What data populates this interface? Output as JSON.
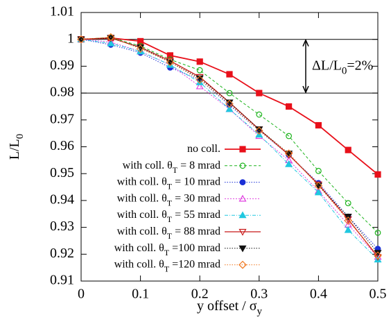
{
  "chart_data": {
    "type": "line",
    "xlabel": [
      "y offset / σ",
      "y"
    ],
    "ylabel": [
      "L/L",
      "0"
    ],
    "x": [
      0,
      0.05,
      0.1,
      0.15,
      0.2,
      0.25,
      0.3,
      0.35,
      0.4,
      0.45,
      0.5
    ],
    "xlim": [
      0,
      0.5
    ],
    "xticks": [
      0,
      0.1,
      0.2,
      0.3,
      0.4,
      0.5
    ],
    "ylim": [
      0.91,
      1.01
    ],
    "yticks": [
      0.91,
      0.92,
      0.93,
      0.94,
      0.95,
      0.96,
      0.97,
      0.98,
      0.99,
      1,
      1.01
    ],
    "hlines": [
      1,
      0.98
    ],
    "annotation": [
      "ΔL/L",
      "0",
      "=2%"
    ],
    "series": [
      {
        "name": [
          "no coll."
        ],
        "color": "#e8101a",
        "marker": "square",
        "dash": "",
        "width": 1.8,
        "values": [
          1,
          1.0005,
          0.9993,
          0.994,
          0.9917,
          0.987,
          0.98,
          0.975,
          0.968,
          0.9588,
          0.9497
        ]
      },
      {
        "name": [
          "with coll. θ",
          "T",
          " =  8 mrad"
        ],
        "color": "#1bb31b",
        "marker": "circle-open",
        "dash": "4 3",
        "width": 1,
        "values": [
          1,
          1.0007,
          0.9975,
          0.9925,
          0.9885,
          0.98,
          0.972,
          0.964,
          0.951,
          0.939,
          0.928
        ]
      },
      {
        "name": [
          "with coll. θ",
          "T",
          " = 10 mrad"
        ],
        "color": "#1a2fd6",
        "marker": "circle",
        "dash": "1.5 2",
        "width": 1,
        "values": [
          1,
          0.998,
          0.995,
          0.9895,
          0.985,
          0.9755,
          0.966,
          0.957,
          0.9465,
          0.934,
          0.922
        ]
      },
      {
        "name": [
          "with coll. θ",
          "T",
          " = 30 mrad"
        ],
        "color": "#e040e0",
        "marker": "triangle-open",
        "dash": "2 2",
        "width": 1,
        "values": [
          1,
          0.999,
          0.9955,
          0.9905,
          0.9825,
          0.974,
          0.964,
          0.955,
          0.9435,
          0.931,
          0.919
        ]
      },
      {
        "name": [
          "with coll. θ",
          "T",
          " = 55 mrad"
        ],
        "color": "#20c8e0",
        "marker": "triangle",
        "dash": "5 2 1 2",
        "width": 1,
        "values": [
          1,
          0.9985,
          0.9955,
          0.9905,
          0.984,
          0.974,
          0.9645,
          0.9535,
          0.943,
          0.929,
          0.918
        ]
      },
      {
        "name": [
          "with coll. θ",
          "T",
          " = 88 mrad"
        ],
        "color": "#c81818",
        "marker": "down-open",
        "dash": "",
        "width": 1.3,
        "values": [
          1,
          1.0005,
          0.997,
          0.992,
          0.986,
          0.9765,
          0.9665,
          0.957,
          0.946,
          0.933,
          0.919
        ]
      },
      {
        "name": [
          "with coll. θ",
          "T",
          " =100 mrad"
        ],
        "color": "#111111",
        "marker": "down",
        "dash": "1.5 2",
        "width": 1,
        "values": [
          1,
          1.0005,
          0.997,
          0.9915,
          0.9855,
          0.9765,
          0.9665,
          0.9575,
          0.9455,
          0.934,
          0.9205
        ]
      },
      {
        "name": [
          "with coll. θ",
          "T",
          " =120 mrad"
        ],
        "color": "#f07820",
        "marker": "diamond-open",
        "dash": "1.5 2",
        "width": 1,
        "values": [
          1,
          1.0008,
          0.9965,
          0.9915,
          0.985,
          0.976,
          0.966,
          0.9575,
          0.9455,
          0.9325,
          0.9195
        ]
      }
    ]
  }
}
